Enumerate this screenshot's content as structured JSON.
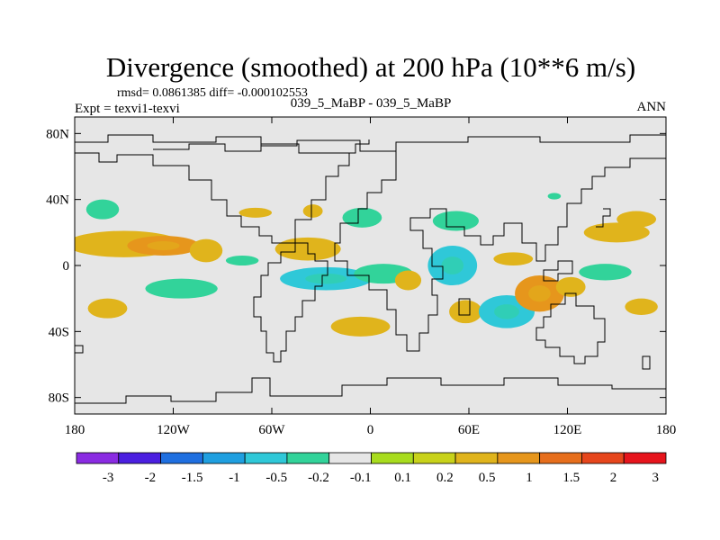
{
  "chart_data": {
    "type": "heatmap",
    "title": "Divergence (smoothed) at 200 hPa (10**6 m/s)",
    "stats_line": "rmsd= 0.0861385 diff= -0.000102553",
    "left_label": "Expt = texvi1-texvi",
    "center_label": "039_5_MaBP - 039_5_MaBP",
    "right_label": "ANN",
    "x_range": [
      -180,
      180
    ],
    "y_range": [
      -90,
      90
    ],
    "x_ticks": [
      {
        "value": -180,
        "label": "180"
      },
      {
        "value": -120,
        "label": "120W"
      },
      {
        "value": -60,
        "label": "60W"
      },
      {
        "value": 0,
        "label": "0"
      },
      {
        "value": 60,
        "label": "60E"
      },
      {
        "value": 120,
        "label": "120E"
      },
      {
        "value": 180,
        "label": "180"
      }
    ],
    "y_ticks": [
      {
        "value": 80,
        "label": "80N"
      },
      {
        "value": 40,
        "label": "40N"
      },
      {
        "value": 0,
        "label": "0"
      },
      {
        "value": -40,
        "label": "40S"
      },
      {
        "value": -80,
        "label": "80S"
      }
    ],
    "colorbar": {
      "colors": [
        "#8a2be2",
        "#4b1fe0",
        "#1f6fe0",
        "#1f9fe0",
        "#2fc8d8",
        "#32d39a",
        "#e6e6e6",
        "#a8dc1e",
        "#c8d21a",
        "#e0b41c",
        "#e6961c",
        "#e66e1c",
        "#e6461c",
        "#e6141c"
      ],
      "labels": [
        "-3",
        "-2",
        "-1.5",
        "-1",
        "-0.5",
        "-0.2",
        "-0.1",
        "0.1",
        "0.2",
        "0.5",
        "1",
        "1.5",
        "2",
        "3"
      ]
    },
    "anomalies": [
      {
        "lon": -163,
        "lat": 34,
        "rlon": 10,
        "rlat": 6,
        "value": -0.3
      },
      {
        "lon": -150,
        "lat": 13,
        "rlon": 35,
        "rlat": 8,
        "value": 0.25
      },
      {
        "lon": -126,
        "lat": 12,
        "rlon": 22,
        "rlat": 6,
        "value": 0.7
      },
      {
        "lon": -100,
        "lat": 9,
        "rlon": 10,
        "rlat": 7,
        "value": 0.3
      },
      {
        "lon": -160,
        "lat": -26,
        "rlon": 12,
        "rlat": 6,
        "value": 0.3
      },
      {
        "lon": -115,
        "lat": -14,
        "rlon": 22,
        "rlat": 6,
        "value": -0.3
      },
      {
        "lon": -78,
        "lat": 3,
        "rlon": 10,
        "rlat": 3,
        "value": -0.3
      },
      {
        "lon": -38,
        "lat": 10,
        "rlon": 20,
        "rlat": 7,
        "value": 0.3
      },
      {
        "lon": -27,
        "lat": -8,
        "rlon": 28,
        "rlat": 7,
        "value": -0.6
      },
      {
        "lon": 8,
        "lat": -5,
        "rlon": 18,
        "rlat": 6,
        "value": -0.35
      },
      {
        "lon": 23,
        "lat": -9,
        "rlon": 8,
        "rlat": 6,
        "value": 0.3
      },
      {
        "lon": -6,
        "lat": -37,
        "rlon": 18,
        "rlat": 6,
        "value": 0.3
      },
      {
        "lon": -70,
        "lat": 32,
        "rlon": 10,
        "rlat": 3,
        "value": 0.3
      },
      {
        "lon": -35,
        "lat": 33,
        "rlon": 6,
        "rlat": 4,
        "value": 0.3
      },
      {
        "lon": -5,
        "lat": 29,
        "rlon": 12,
        "rlat": 6,
        "value": -0.3
      },
      {
        "lon": 52,
        "lat": 27,
        "rlon": 14,
        "rlat": 6,
        "value": -0.3
      },
      {
        "lon": 50,
        "lat": 0,
        "rlon": 15,
        "rlat": 12,
        "value": -0.6
      },
      {
        "lon": 58,
        "lat": -28,
        "rlon": 10,
        "rlat": 7,
        "value": 0.3
      },
      {
        "lon": 87,
        "lat": 4,
        "rlon": 12,
        "rlat": 4,
        "value": 0.3
      },
      {
        "lon": 83,
        "lat": -28,
        "rlon": 17,
        "rlat": 10,
        "value": -0.6
      },
      {
        "lon": 103,
        "lat": -17,
        "rlon": 15,
        "rlat": 11,
        "value": 0.7
      },
      {
        "lon": 122,
        "lat": -13,
        "rlon": 9,
        "rlat": 6,
        "value": 0.3
      },
      {
        "lon": 143,
        "lat": -4,
        "rlon": 16,
        "rlat": 5,
        "value": -0.3
      },
      {
        "lon": 150,
        "lat": 20,
        "rlon": 20,
        "rlat": 6,
        "value": 0.3
      },
      {
        "lon": 162,
        "lat": 28,
        "rlon": 12,
        "rlat": 5,
        "value": 0.3
      },
      {
        "lon": 165,
        "lat": -25,
        "rlon": 10,
        "rlat": 5,
        "value": 0.3
      },
      {
        "lon": 112,
        "lat": 42,
        "rlon": 4,
        "rlat": 2,
        "value": -0.3
      }
    ]
  }
}
